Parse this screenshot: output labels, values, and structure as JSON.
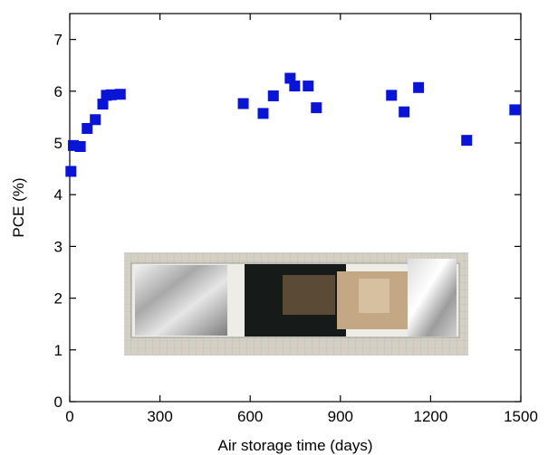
{
  "chart_data": {
    "type": "scatter",
    "xlabel": "Air storage time (days)",
    "ylabel": "PCE (%)",
    "xlim": [
      0,
      1500
    ],
    "ylim": [
      0,
      7.5
    ],
    "xticks": [
      0,
      300,
      600,
      900,
      1200,
      1500
    ],
    "yticks": [
      0,
      1,
      2,
      3,
      4,
      5,
      6,
      7
    ],
    "grid": false,
    "marker": "square",
    "series": [
      {
        "color": "#0a14d6",
        "x": [
          4,
          12,
          35,
          58,
          85,
          110,
          122,
          138,
          168,
          577,
          643,
          677,
          733,
          748,
          793,
          820,
          1070,
          1112,
          1160,
          1320,
          1480
        ],
        "y": [
          4.45,
          4.95,
          4.93,
          5.28,
          5.45,
          5.75,
          5.92,
          5.93,
          5.94,
          5.76,
          5.57,
          5.91,
          6.25,
          6.1,
          6.1,
          5.68,
          5.92,
          5.6,
          6.07,
          5.05,
          5.64
        ]
      }
    ]
  },
  "inset_photo": {
    "name": "device-photograph",
    "background_color": "#d2ccbc",
    "grid_color": "#9fb1c4"
  }
}
